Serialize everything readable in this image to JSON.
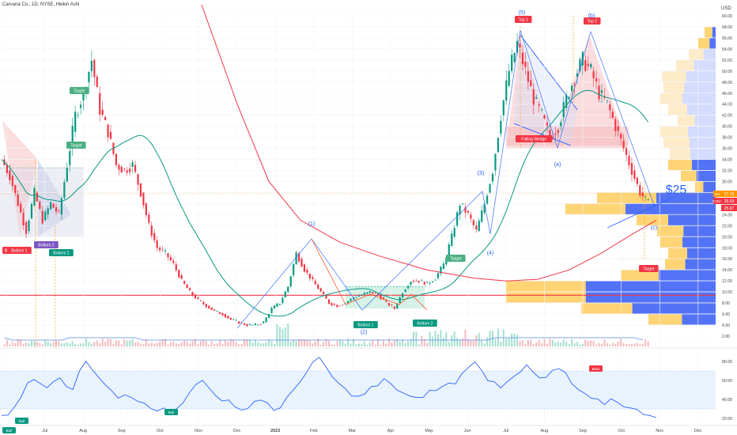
{
  "header": {
    "title": "Carvana Co., 1D, NYSE, Heikin Ashi"
  },
  "chart_data": [
    {
      "type": "candlestick",
      "name": "price",
      "currency_label": "USD",
      "ylim": [
        2,
        60
      ],
      "y_ticks": [
        "60.00",
        "58.00",
        "56.00",
        "54.00",
        "52.00",
        "50.00",
        "48.00",
        "46.00",
        "44.00",
        "42.00",
        "40.00",
        "38.00",
        "36.00",
        "34.00",
        "32.00",
        "30.00",
        "28.00",
        "26.00",
        "24.00",
        "22.00",
        "20.00",
        "18.00",
        "16.00",
        "14.00",
        "12.00",
        "10.00",
        "8.00",
        "6.00",
        "4.00",
        "2.00"
      ],
      "x_ticks": [
        "Jun",
        "Jul",
        "Aug",
        "Sep",
        "Oct",
        "Nov",
        "Dec",
        "2023",
        "Feb",
        "Mar",
        "Apr",
        "May",
        "Jun",
        "Jul",
        "Aug",
        "Sep",
        "Oct",
        "Nov",
        "Dec"
      ],
      "price_tags": [
        {
          "label": "Nv",
          "value": "27.79",
          "color": "#ff9800"
        },
        {
          "label": "CVNA",
          "value": "26.09",
          "color": "#f23645"
        },
        {
          "label": "",
          "value": "25.97",
          "color": "#f23645"
        }
      ],
      "annotations": {
        "top1": "Top 1",
        "top2": "Top 2",
        "bottom1_left": "Bottom 1",
        "bottom2_left": "Bottom 2",
        "bottom2_left_b": "Bottom 2",
        "target1": "Target",
        "target2": "Target",
        "target3": "Target",
        "target4": "Target",
        "bottom1_mid": "Bottom 1",
        "bottom2_mid": "Bottom 2",
        "falling_wedge": "Falling Wedge",
        "wave1": "(1)",
        "wave2": "(2)",
        "wave3": "(3)",
        "wave4": "(4)",
        "wave5a": "(5)",
        "wave5b": "(b)",
        "wave_a": "(a)",
        "wave_c": "(c)",
        "target_price": "$25",
        "bull_label": "B",
        "horizontal_level": 9.4
      },
      "series": [
        {
          "name": "",
          "type": "moving-average",
          "color": "#f23645"
        },
        {
          "name": "",
          "type": "moving-average",
          "color": "#089981"
        }
      ],
      "ohlc_path": [
        [
          0,
          34
        ],
        [
          3,
          31
        ],
        [
          6,
          26
        ],
        [
          9,
          21
        ],
        [
          12,
          28
        ],
        [
          15,
          23
        ],
        [
          18,
          26
        ],
        [
          21,
          24
        ],
        [
          24,
          33
        ],
        [
          27,
          42
        ],
        [
          30,
          46
        ],
        [
          33,
          52
        ],
        [
          36,
          43
        ],
        [
          39,
          39
        ],
        [
          42,
          33
        ],
        [
          45,
          32
        ],
        [
          48,
          33
        ],
        [
          51,
          28
        ],
        [
          54,
          22
        ],
        [
          57,
          18
        ],
        [
          60,
          17
        ],
        [
          63,
          15
        ],
        [
          66,
          12
        ],
        [
          69,
          10
        ],
        [
          72,
          8.5
        ],
        [
          75,
          7.5
        ],
        [
          78,
          6.5
        ],
        [
          81,
          6
        ],
        [
          84,
          5
        ],
        [
          87,
          4.5
        ],
        [
          90,
          4
        ],
        [
          93,
          4
        ],
        [
          96,
          4.5
        ],
        [
          99,
          7
        ],
        [
          102,
          8
        ],
        [
          105,
          11
        ],
        [
          108,
          17
        ],
        [
          111,
          14
        ],
        [
          114,
          12
        ],
        [
          117,
          10
        ],
        [
          120,
          8
        ],
        [
          123,
          7.5
        ],
        [
          126,
          8
        ],
        [
          129,
          9
        ],
        [
          132,
          9.5
        ],
        [
          135,
          10
        ],
        [
          138,
          9.5
        ],
        [
          141,
          8
        ],
        [
          144,
          7
        ],
        [
          147,
          10
        ],
        [
          150,
          12
        ],
        [
          153,
          12
        ],
        [
          156,
          11.5
        ],
        [
          159,
          12.5
        ],
        [
          162,
          15
        ],
        [
          165,
          20
        ],
        [
          168,
          26
        ],
        [
          171,
          24
        ],
        [
          174,
          21
        ],
        [
          177,
          26
        ],
        [
          180,
          32
        ],
        [
          183,
          42
        ],
        [
          186,
          50
        ],
        [
          189,
          55
        ],
        [
          192,
          50
        ],
        [
          195,
          45
        ],
        [
          198,
          42
        ],
        [
          201,
          38
        ],
        [
          204,
          40
        ],
        [
          207,
          45
        ],
        [
          210,
          49
        ],
        [
          213,
          52
        ],
        [
          216,
          50
        ],
        [
          219,
          46
        ],
        [
          222,
          44
        ],
        [
          225,
          40
        ],
        [
          228,
          36
        ],
        [
          231,
          32
        ],
        [
          234,
          28
        ],
        [
          237,
          26
        ]
      ]
    },
    {
      "type": "line",
      "name": "rsi",
      "ylim": [
        15,
        90
      ],
      "y_ticks": [
        "80.00",
        "60.00",
        "40.00",
        "20.00"
      ],
      "band": [
        30,
        70
      ],
      "labels": {
        "bull1": "Bull",
        "bull2": "Bull",
        "bull3": "Bull",
        "bear": "Bear"
      },
      "values": [
        23,
        25,
        30,
        42,
        56,
        60,
        55,
        50,
        60,
        62,
        55,
        48,
        70,
        78,
        72,
        62,
        55,
        48,
        40,
        45,
        42,
        40,
        38,
        32,
        30,
        29,
        28,
        32,
        38,
        46,
        55,
        60,
        52,
        46,
        40,
        38,
        30,
        28,
        33,
        38,
        40,
        36,
        30,
        30,
        40,
        50,
        60,
        68,
        78,
        82,
        74,
        64,
        56,
        50,
        46,
        42,
        46,
        52,
        54,
        60,
        58,
        50,
        46,
        42,
        40,
        44,
        48,
        50,
        53,
        56,
        58,
        66,
        76,
        78,
        70,
        62,
        58,
        54,
        60,
        66,
        70,
        74,
        68,
        62,
        62,
        70,
        72,
        66,
        56,
        50,
        44,
        40,
        38,
        36,
        40,
        38,
        34,
        30,
        28,
        26,
        24,
        23
      ]
    }
  ]
}
